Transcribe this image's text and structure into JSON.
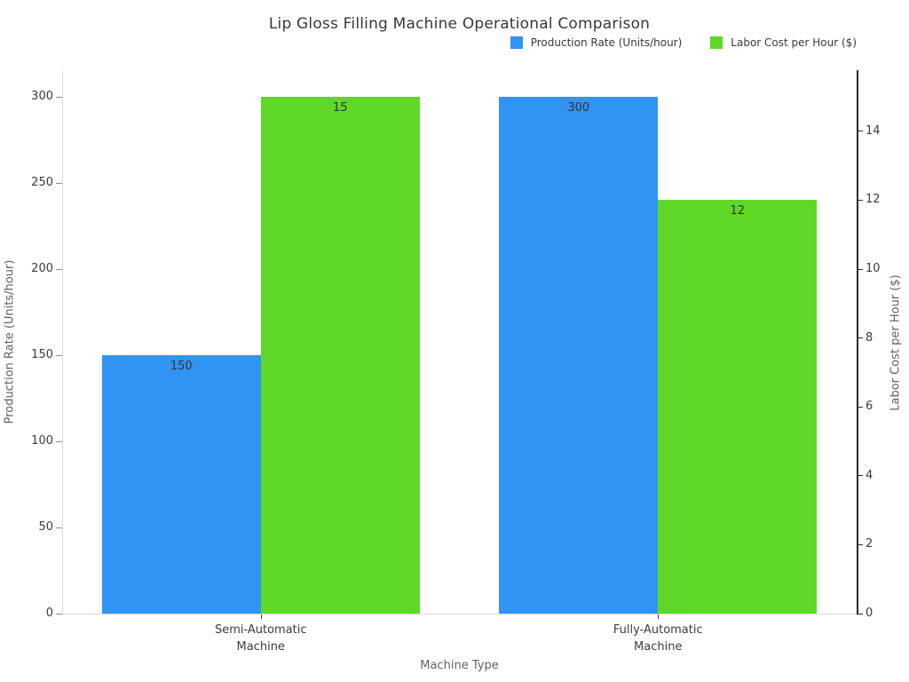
{
  "chart_data": {
    "type": "bar",
    "title": "Lip Gloss Filling Machine Operational Comparison",
    "xlabel": "Machine Type",
    "categories": [
      "Semi-Automatic\nMachine",
      "Fully-Automatic\nMachine"
    ],
    "series": [
      {
        "name": "Production Rate (Units/hour)",
        "values": [
          150,
          300
        ],
        "color": "#3094f2",
        "axis": "left"
      },
      {
        "name": "Labor Cost per Hour ($)",
        "values": [
          15,
          12
        ],
        "color": "#5fd828",
        "axis": "right"
      }
    ],
    "left_axis": {
      "label": "Production Rate (Units/hour)",
      "ticks": [
        0,
        50,
        100,
        150,
        200,
        250,
        300
      ],
      "range": [
        0,
        315
      ]
    },
    "right_axis": {
      "label": "Labor Cost per Hour ($)",
      "ticks": [
        0,
        2,
        4,
        6,
        8,
        10,
        12,
        14
      ],
      "range": [
        0,
        15.75
      ]
    },
    "bar_value_labels": [
      "150",
      "300",
      "15",
      "12"
    ],
    "legend_position": "upper right",
    "grid": false,
    "background": "#ffffff"
  }
}
